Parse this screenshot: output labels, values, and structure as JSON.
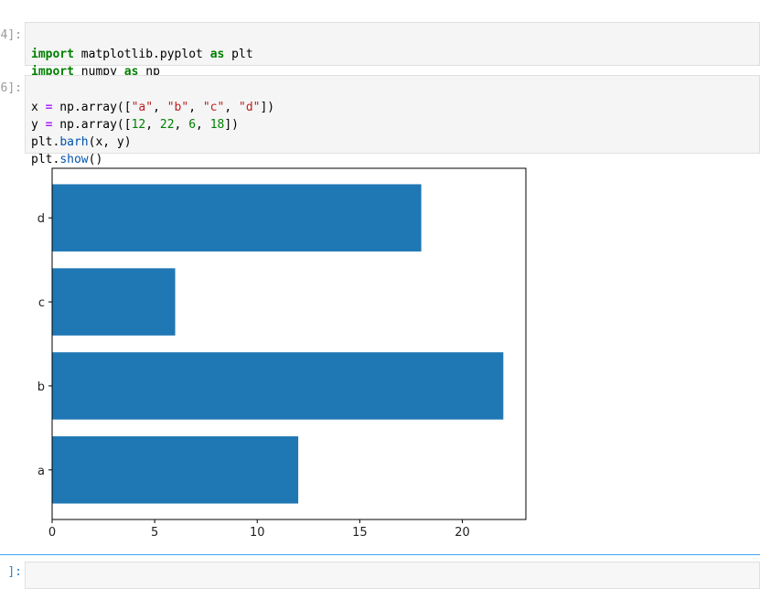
{
  "cells": [
    {
      "prompt": "4]:",
      "code": [
        [
          "import",
          " matplotlib.pyplot ",
          "as",
          " plt"
        ],
        [
          "import",
          " numpy ",
          "as",
          " np"
        ]
      ]
    },
    {
      "prompt": "6]:",
      "code": [
        [
          "x ",
          "=",
          " np.array([",
          "\"a\"",
          ", ",
          "\"b\"",
          ", ",
          "\"c\"",
          ", ",
          "\"d\"",
          "])"
        ],
        [
          "y ",
          "=",
          " np.array([",
          "12",
          ", ",
          "22",
          ", ",
          "6",
          ", ",
          "18",
          "])"
        ],
        [
          "plt.",
          "barh",
          "(x, y)"
        ],
        [
          "plt.",
          "show",
          "()"
        ]
      ]
    },
    {
      "prompt": "]:"
    }
  ],
  "chart_data": {
    "type": "barh",
    "categories": [
      "a",
      "b",
      "c",
      "d"
    ],
    "values": [
      12,
      22,
      6,
      18
    ],
    "color": "#1f77b4",
    "xlim": [
      0,
      23.1
    ],
    "xticks": [
      0,
      5,
      10,
      15,
      20
    ]
  }
}
